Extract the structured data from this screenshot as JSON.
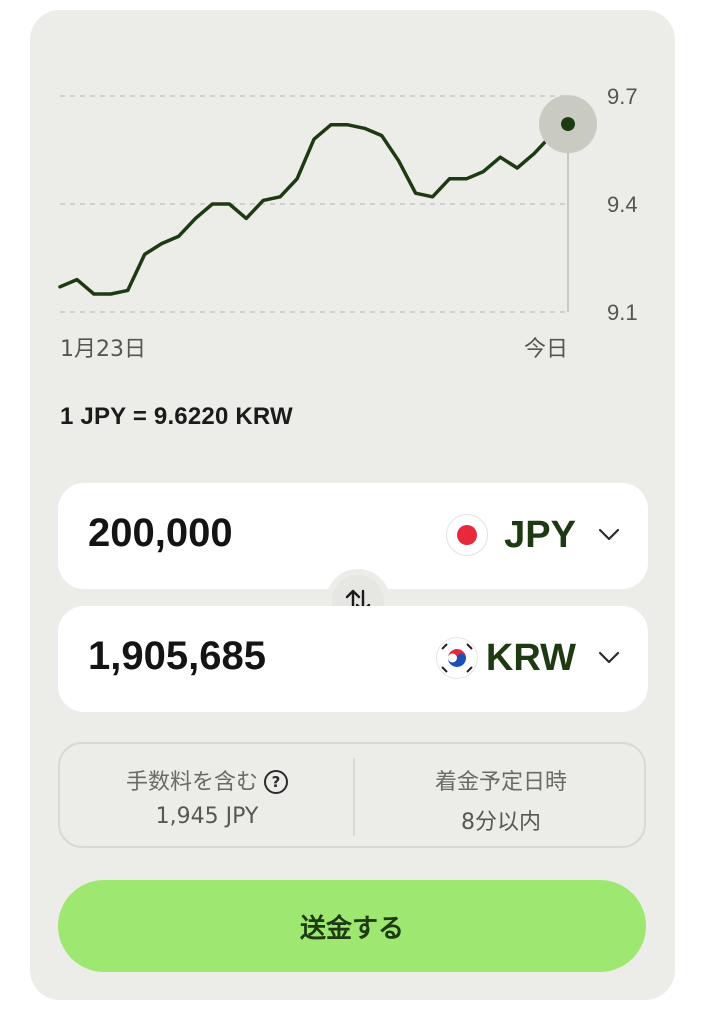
{
  "chart_data": {
    "type": "line",
    "x_labels": [
      "1月23日",
      "今日"
    ],
    "y_ticks": [
      9.7,
      9.4,
      9.1
    ],
    "ylim": [
      9.1,
      9.7
    ],
    "grid": true,
    "values": [
      9.17,
      9.19,
      9.15,
      9.15,
      9.16,
      9.26,
      9.29,
      9.31,
      9.36,
      9.4,
      9.4,
      9.36,
      9.41,
      9.42,
      9.47,
      9.58,
      9.62,
      9.62,
      9.61,
      9.59,
      9.52,
      9.43,
      9.42,
      9.47,
      9.47,
      9.49,
      9.53,
      9.5,
      9.54,
      9.59,
      9.622
    ],
    "current_value": 9.622
  },
  "rate": {
    "text": "1 JPY = 9.6220 KRW"
  },
  "send_box": {
    "amount": "200,000",
    "currency": "JPY",
    "flag": "japan-flag"
  },
  "receive_box": {
    "amount": "1,905,685",
    "currency": "KRW",
    "flag": "korea-flag"
  },
  "info": {
    "fee_label": "手数料を含む",
    "fee_value": "1,945 JPY",
    "arrival_label": "着金予定日時",
    "arrival_value": "8分以内"
  },
  "button": {
    "label": "送金する"
  },
  "colors": {
    "line": "#1e3a12",
    "accent": "#9ee872",
    "card": "#ecece8",
    "flag_red": "#e8283d",
    "flag_blue": "#1d4fb3"
  }
}
